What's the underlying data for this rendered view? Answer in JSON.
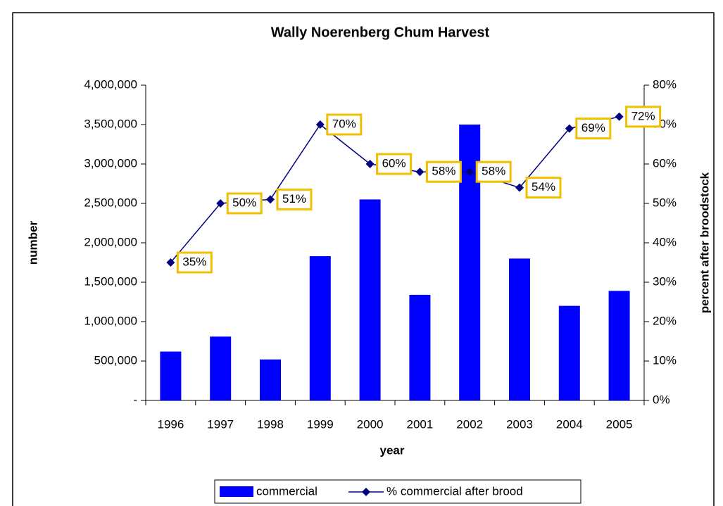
{
  "chart_data": {
    "type": "bar",
    "title": "Wally Noerenberg Chum Harvest",
    "x_label": "year",
    "y_label": "number",
    "y2_label": "percent after broodstock",
    "categories": [
      "1996",
      "1997",
      "1998",
      "1999",
      "2000",
      "2001",
      "2002",
      "2003",
      "2004",
      "2005"
    ],
    "series": [
      {
        "name": "commercial",
        "type": "bar",
        "color": "#0000ff",
        "values": [
          620000,
          810000,
          520000,
          1830000,
          2550000,
          1340000,
          3500000,
          1800000,
          1200000,
          1390000
        ]
      },
      {
        "name": "% commercial after brood",
        "type": "line",
        "axis": "y2",
        "color": "#000080",
        "values": [
          35,
          50,
          51,
          70,
          60,
          58,
          58,
          54,
          69,
          72
        ],
        "value_labels": [
          "35%",
          "50%",
          "51%",
          "70%",
          "60%",
          "58%",
          "58%",
          "54%",
          "69%",
          "72%"
        ]
      }
    ],
    "ylim": [
      0,
      4000000
    ],
    "yticks": [
      {
        "value": 0,
        "label": "-"
      },
      {
        "value": 500000,
        "label": "500,000"
      },
      {
        "value": 1000000,
        "label": "1,000,000"
      },
      {
        "value": 1500000,
        "label": "1,500,000"
      },
      {
        "value": 2000000,
        "label": "2,000,000"
      },
      {
        "value": 2500000,
        "label": "2,500,000"
      },
      {
        "value": 3000000,
        "label": "3,000,000"
      },
      {
        "value": 3500000,
        "label": "3,500,000"
      },
      {
        "value": 4000000,
        "label": "4,000,000"
      }
    ],
    "y2lim": [
      0,
      80
    ],
    "y2ticks": [
      {
        "value": 0,
        "label": "0%"
      },
      {
        "value": 10,
        "label": "10%"
      },
      {
        "value": 20,
        "label": "20%"
      },
      {
        "value": 30,
        "label": "30%"
      },
      {
        "value": 40,
        "label": "40%"
      },
      {
        "value": 50,
        "label": "50%"
      },
      {
        "value": 60,
        "label": "60%"
      },
      {
        "value": 70,
        "label": "70%"
      },
      {
        "value": 80,
        "label": "80%"
      }
    ],
    "grid": false,
    "legend": "bottom"
  }
}
